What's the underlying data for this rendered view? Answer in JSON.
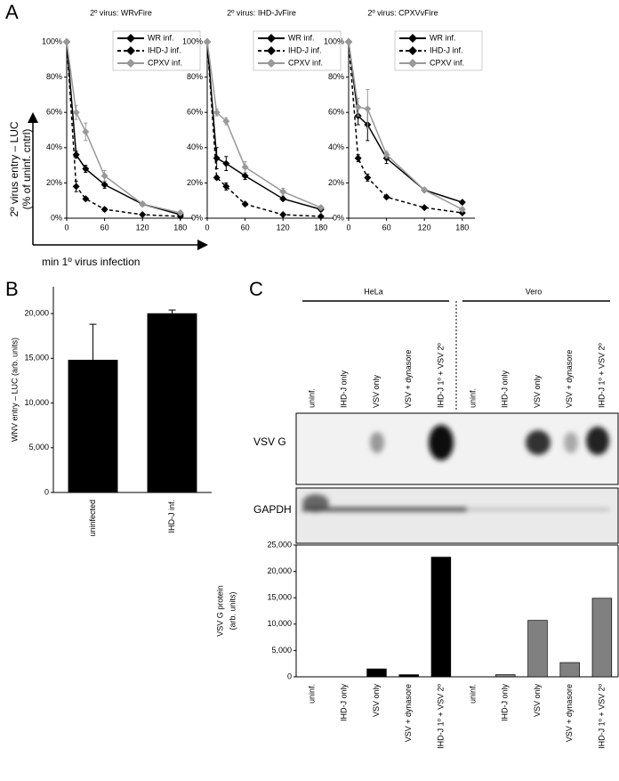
{
  "figure": {
    "panel_labels": [
      "A",
      "B",
      "C"
    ],
    "a_ylabel": [
      "2º virus entry – LUC",
      "(% of uninf. cntrl)"
    ],
    "a_xlabel": "min 1º virus infection"
  },
  "blot": {
    "groups": [
      "HeLa",
      "Vero"
    ],
    "lanes": [
      "uninf.",
      "IHD-J only",
      "VSV only",
      "VSV + dynasore",
      "IHD-J 1º + VSV 2º",
      "uninf.",
      "IHD-J only",
      "VSV only",
      "VSV + dynasore",
      "IHD-J 1º + VSV 2º"
    ],
    "rows": [
      "VSV G",
      "GAPDH"
    ]
  },
  "chart_data": [
    {
      "type": "line",
      "title": "2º virus: WRvFire",
      "x": [
        0,
        15,
        30,
        60,
        120,
        180
      ],
      "xlim": [
        0,
        200
      ],
      "xticks": [
        0,
        60,
        120,
        180
      ],
      "ylim": [
        0,
        100
      ],
      "yticks": [
        {
          "value": 0,
          "label": "0%"
        },
        {
          "value": 20,
          "label": "20%"
        },
        {
          "value": 40,
          "label": "40%"
        },
        {
          "value": 60,
          "label": "60%"
        },
        {
          "value": 80,
          "label": "80%"
        },
        {
          "value": 100,
          "label": "100%"
        }
      ],
      "legend": "upper right",
      "series": [
        {
          "name": "WR inf.",
          "color": "#000000",
          "line_style": "solid",
          "values": [
            100,
            36,
            28,
            19,
            8,
            2
          ],
          "errors": [
            0,
            2,
            2,
            2,
            1,
            0
          ]
        },
        {
          "name": "IHD-J inf.",
          "color": "#000000",
          "line_style": "dashed",
          "values": [
            100,
            18,
            11,
            5,
            2,
            1
          ],
          "errors": [
            0,
            3,
            1,
            1,
            0,
            0
          ]
        },
        {
          "name": "CPXV inf.",
          "color": "#999999",
          "line_style": "solid",
          "values": [
            100,
            60,
            49,
            24,
            8,
            3
          ],
          "errors": [
            0,
            4,
            5,
            3,
            1,
            1
          ]
        }
      ]
    },
    {
      "type": "line",
      "title": "2º virus: IHD-JvFire",
      "x": [
        0,
        15,
        30,
        60,
        120,
        180
      ],
      "xlim": [
        0,
        200
      ],
      "xticks": [
        0,
        60,
        120,
        180
      ],
      "ylim": [
        0,
        100
      ],
      "yticks": [
        {
          "value": 0,
          "label": "0%"
        },
        {
          "value": 20,
          "label": "20%"
        },
        {
          "value": 40,
          "label": "40%"
        },
        {
          "value": 60,
          "label": "60%"
        },
        {
          "value": 80,
          "label": "80%"
        },
        {
          "value": 100,
          "label": "100%"
        }
      ],
      "legend": "upper right",
      "series": [
        {
          "name": "WR inf.",
          "color": "#000000",
          "line_style": "solid",
          "values": [
            100,
            34,
            31,
            24,
            11,
            5
          ],
          "errors": [
            0,
            6,
            4,
            2,
            1,
            1
          ]
        },
        {
          "name": "IHD-J inf.",
          "color": "#000000",
          "line_style": "dashed",
          "values": [
            100,
            23,
            18,
            8,
            2,
            1
          ],
          "errors": [
            0,
            1,
            2,
            1,
            0,
            0
          ]
        },
        {
          "name": "CPXV inf.",
          "color": "#999999",
          "line_style": "solid",
          "values": [
            100,
            60,
            55,
            29,
            15,
            6
          ],
          "errors": [
            0,
            2,
            2,
            3,
            2,
            1
          ]
        }
      ]
    },
    {
      "type": "line",
      "title": "2º virus: CPXVvFire",
      "x": [
        0,
        15,
        30,
        60,
        120,
        180
      ],
      "xlim": [
        0,
        200
      ],
      "xticks": [
        0,
        60,
        120,
        180
      ],
      "ylim": [
        0,
        100
      ],
      "yticks": [
        {
          "value": 0,
          "label": "0%"
        },
        {
          "value": 20,
          "label": "20%"
        },
        {
          "value": 40,
          "label": "40%"
        },
        {
          "value": 60,
          "label": "60%"
        },
        {
          "value": 80,
          "label": "80%"
        },
        {
          "value": 100,
          "label": "100%"
        }
      ],
      "legend": "upper right",
      "series": [
        {
          "name": "WR inf.",
          "color": "#000000",
          "line_style": "solid",
          "values": [
            100,
            58,
            53,
            34,
            16,
            9
          ],
          "errors": [
            0,
            5,
            9,
            3,
            1,
            1
          ]
        },
        {
          "name": "IHD-J inf.",
          "color": "#000000",
          "line_style": "dashed",
          "values": [
            100,
            34,
            23,
            12,
            6,
            3
          ],
          "errors": [
            0,
            2,
            2,
            1,
            0,
            0
          ]
        },
        {
          "name": "CPXV inf.",
          "color": "#999999",
          "line_style": "solid",
          "values": [
            100,
            63,
            62,
            36,
            16,
            5
          ],
          "errors": [
            0,
            5,
            11,
            2,
            1,
            1
          ]
        }
      ]
    },
    {
      "type": "bar",
      "ylabel": "WNV entry – LUC (arb. units)",
      "categories": [
        "uninfected",
        "IHD-J inf."
      ],
      "values": [
        14800,
        20000
      ],
      "errors": [
        4000,
        400
      ],
      "color": "#000000",
      "ylim": [
        0,
        23000
      ],
      "yticks": [
        0,
        {
          "value": 5000,
          "label": "5,000"
        },
        {
          "value": 10000,
          "label": "10,000"
        },
        {
          "value": 15000,
          "label": "15,000"
        },
        {
          "value": 20000,
          "label": "20,000"
        }
      ]
    },
    {
      "type": "bar",
      "ylabel": [
        "VSV G protein",
        "(arb. units)"
      ],
      "categories": [
        "uninf.",
        "IHD-J only",
        "VSV only",
        "VSV + dynasore",
        "IHD-J 1º + VSV 2º",
        "uninf.",
        "IHD-J only",
        "VSV only",
        "VSV + dynasore",
        "IHD-J 1º + VSV 2º"
      ],
      "values": [
        0,
        0,
        1500,
        400,
        22700,
        0,
        400,
        10700,
        2700,
        14900
      ],
      "colors": [
        "#000000",
        "#000000",
        "#000000",
        "#000000",
        "#000000",
        "#808080",
        "#808080",
        "#808080",
        "#808080",
        "#808080"
      ],
      "ylim": [
        0,
        25000
      ],
      "yticks": [
        0,
        {
          "value": 5000,
          "label": "5,000"
        },
        {
          "value": 10000,
          "label": "10,000"
        },
        {
          "value": 15000,
          "label": "15,000"
        },
        {
          "value": 20000,
          "label": "20,000"
        },
        {
          "value": 25000,
          "label": "25,000"
        }
      ]
    }
  ]
}
